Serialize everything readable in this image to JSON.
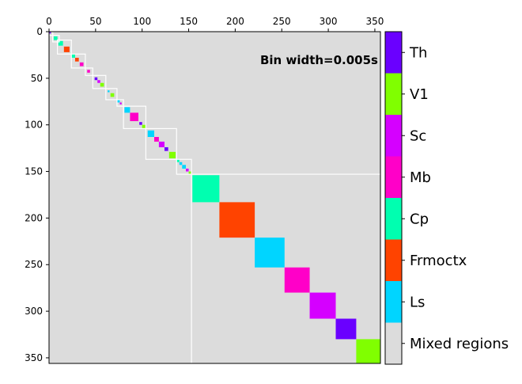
{
  "chart_data": {
    "type": "heatmap",
    "title": "",
    "xlabel": "",
    "ylabel": "",
    "xlim": [
      0,
      356
    ],
    "ylim": [
      356,
      0
    ],
    "x_ticks": [
      0,
      50,
      100,
      150,
      200,
      250,
      300,
      350
    ],
    "y_ticks": [
      0,
      50,
      100,
      150,
      200,
      250,
      300,
      350
    ],
    "x_tick_labels": [
      "0",
      "50",
      "100",
      "150",
      "200",
      "250",
      "300",
      "350"
    ],
    "y_tick_labels": [
      "0",
      "50",
      "100",
      "150",
      "200",
      "250",
      "300",
      "350"
    ],
    "x_axis_position": "top",
    "background_color": "#dcdcdc",
    "grid": false,
    "annotation": "Bin width=0.005s",
    "colorbar": {
      "placement": "right",
      "categories": [
        {
          "name": "Mixed regions",
          "color": "#dcdcdc"
        },
        {
          "name": "Ls",
          "color": "#00d5ff"
        },
        {
          "name": "Frmoctx",
          "color": "#ff4300"
        },
        {
          "name": "Cp",
          "color": "#00ffb0"
        },
        {
          "name": "Mb",
          "color": "#ff00c8"
        },
        {
          "name": "Sc",
          "color": "#d500ff"
        },
        {
          "name": "V1",
          "color": "#80ff00"
        },
        {
          "name": "Th",
          "color": "#6a00ff"
        }
      ]
    },
    "diagonal_blocks": [
      {
        "start": 0,
        "end": 2,
        "region": "Th"
      },
      {
        "start": 5,
        "end": 9,
        "region": "Cp"
      },
      {
        "start": 10,
        "end": 15,
        "region": "Cp"
      },
      {
        "start": 16,
        "end": 22,
        "region": "Frmoctx"
      },
      {
        "start": 24,
        "end": 28,
        "region": "Cp"
      },
      {
        "start": 28,
        "end": 32,
        "region": "Frmoctx"
      },
      {
        "start": 33,
        "end": 37,
        "region": "Mb"
      },
      {
        "start": 41,
        "end": 44,
        "region": "Mb"
      },
      {
        "start": 49,
        "end": 52,
        "region": "Th"
      },
      {
        "start": 52,
        "end": 55,
        "region": "Sc"
      },
      {
        "start": 55,
        "end": 59,
        "region": "V1"
      },
      {
        "start": 63,
        "end": 65,
        "region": "Ls"
      },
      {
        "start": 66,
        "end": 70,
        "region": "V1"
      },
      {
        "start": 73,
        "end": 76,
        "region": "Ls"
      },
      {
        "start": 76,
        "end": 78,
        "region": "Sc"
      },
      {
        "start": 81,
        "end": 87,
        "region": "Ls"
      },
      {
        "start": 87,
        "end": 96,
        "region": "Mb"
      },
      {
        "start": 97,
        "end": 100,
        "region": "Th"
      },
      {
        "start": 100,
        "end": 104,
        "region": "V1"
      },
      {
        "start": 106,
        "end": 113,
        "region": "Ls"
      },
      {
        "start": 113,
        "end": 118,
        "region": "Mb"
      },
      {
        "start": 118,
        "end": 124,
        "region": "Sc"
      },
      {
        "start": 124,
        "end": 128,
        "region": "Th"
      },
      {
        "start": 129,
        "end": 136,
        "region": "V1"
      },
      {
        "start": 137,
        "end": 140,
        "region": "Cp"
      },
      {
        "start": 140,
        "end": 143,
        "region": "Ls"
      },
      {
        "start": 143,
        "end": 147,
        "region": "Ls"
      },
      {
        "start": 147,
        "end": 150,
        "region": "Sc"
      },
      {
        "start": 150,
        "end": 153,
        "region": "V1"
      },
      {
        "start": 154,
        "end": 183,
        "region": "Cp"
      },
      {
        "start": 183,
        "end": 221,
        "region": "Frmoctx"
      },
      {
        "start": 221,
        "end": 253,
        "region": "Ls"
      },
      {
        "start": 253,
        "end": 280,
        "region": "Mb"
      },
      {
        "start": 280,
        "end": 308,
        "region": "Sc"
      },
      {
        "start": 308,
        "end": 330,
        "region": "Th"
      },
      {
        "start": 330,
        "end": 356,
        "region": "V1"
      }
    ],
    "cluster_outlines": [
      {
        "start": 0,
        "end": 4
      },
      {
        "start": 4,
        "end": 11
      },
      {
        "start": 9,
        "end": 24
      },
      {
        "start": 24,
        "end": 39
      },
      {
        "start": 39,
        "end": 47
      },
      {
        "start": 47,
        "end": 61
      },
      {
        "start": 61,
        "end": 73
      },
      {
        "start": 73,
        "end": 80
      },
      {
        "start": 80,
        "end": 104
      },
      {
        "start": 104,
        "end": 137
      },
      {
        "start": 137,
        "end": 153
      }
    ],
    "separator": {
      "at": 153,
      "extent": 356
    }
  }
}
